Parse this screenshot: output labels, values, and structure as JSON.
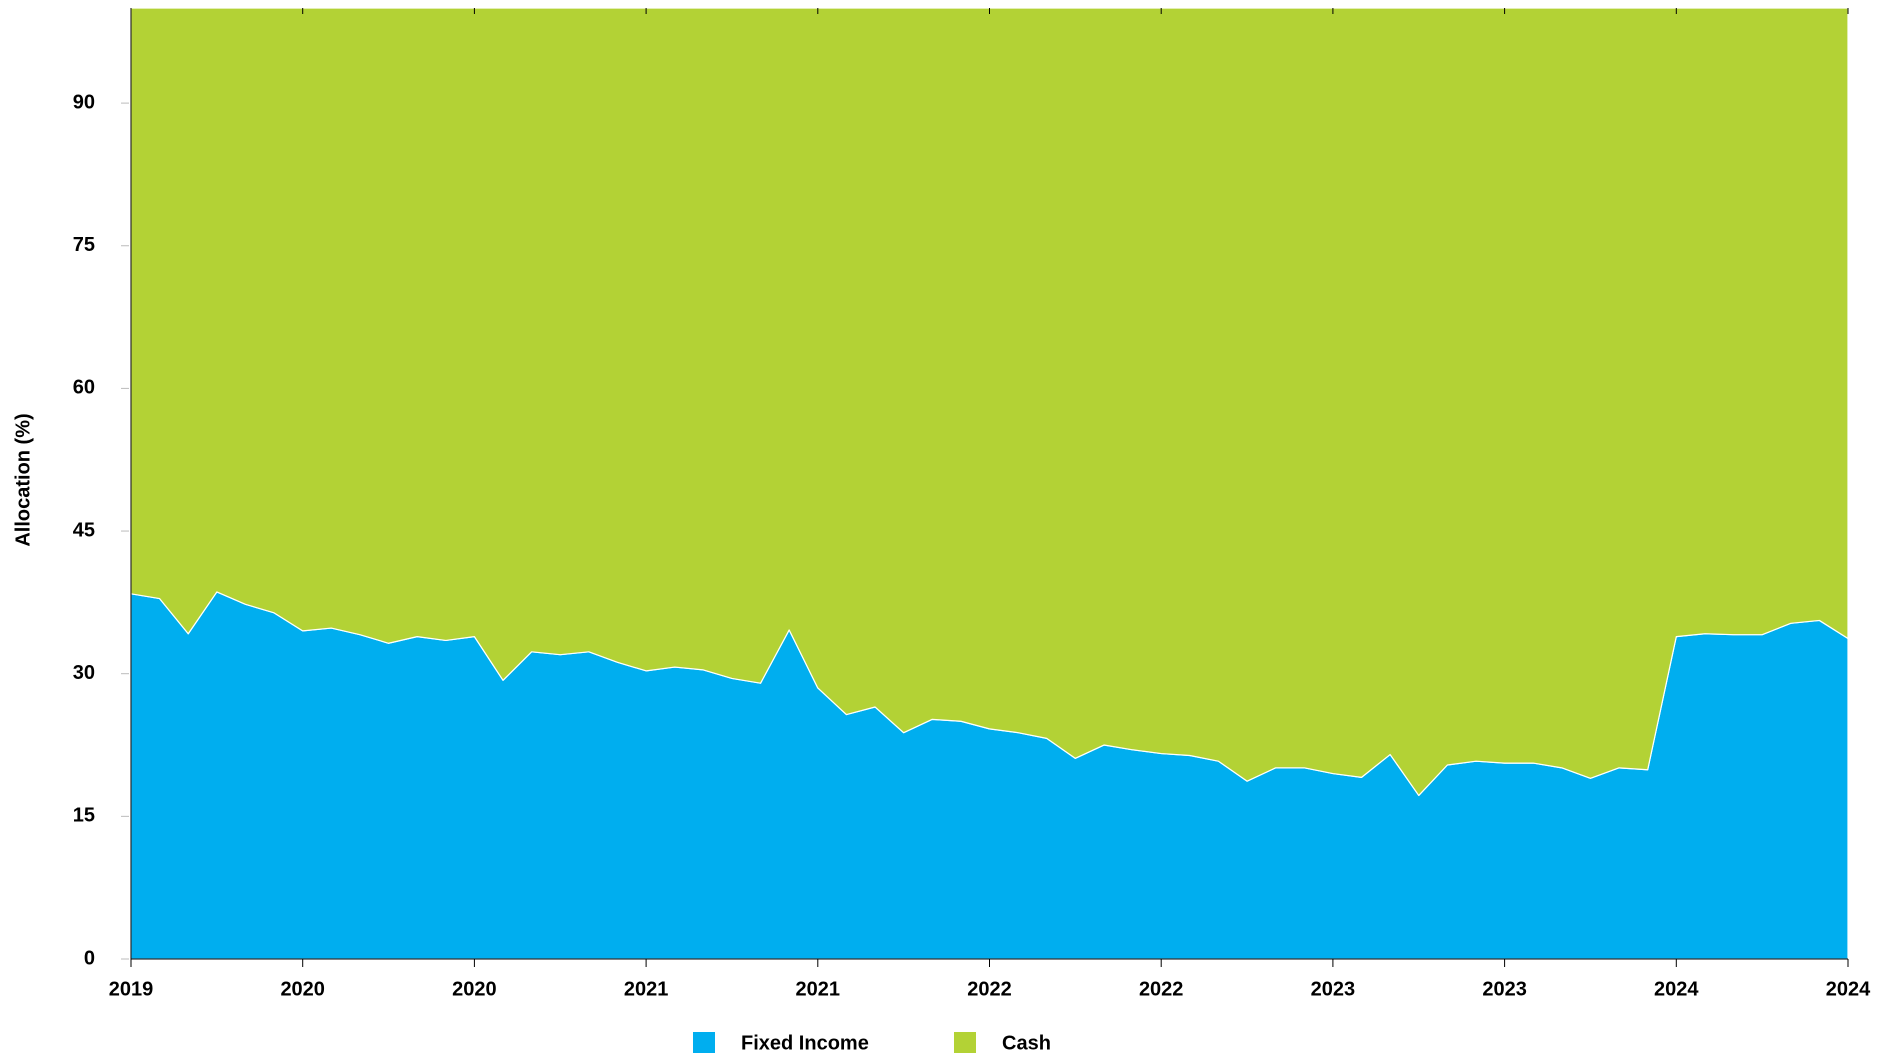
{
  "chart_data": {
    "type": "stacked-area",
    "ylabel": "Allocation (%)",
    "categories": [
      "2019",
      null,
      null,
      null,
      null,
      null,
      "2020",
      null,
      null,
      null,
      null,
      null,
      "2020",
      null,
      null,
      null,
      null,
      null,
      "2021",
      null,
      null,
      null,
      null,
      null,
      "2021",
      null,
      null,
      null,
      null,
      null,
      "2022",
      null,
      null,
      null,
      null,
      null,
      "2022",
      null,
      null,
      null,
      null,
      null,
      "2023",
      null,
      null,
      null,
      null,
      null,
      "2023",
      null,
      null,
      null,
      null,
      null,
      "2024",
      null,
      null,
      null,
      null,
      null,
      "2024"
    ],
    "series": [
      {
        "name": "Fixed Income",
        "color": "#00aeef",
        "values": [
          38.4,
          37.9,
          34.2,
          38.6,
          37.3,
          36.4,
          34.5,
          34.8,
          34.1,
          33.2,
          33.9,
          33.5,
          33.9,
          29.3,
          32.3,
          32.0,
          32.3,
          31.2,
          30.3,
          30.7,
          30.4,
          29.5,
          29.0,
          34.6,
          28.5,
          25.7,
          26.5,
          23.8,
          25.2,
          25.0,
          24.2,
          23.8,
          23.2,
          21.1,
          22.5,
          22.0,
          21.6,
          21.4,
          20.8,
          18.7,
          20.1,
          20.1,
          19.5,
          19.1,
          21.5,
          17.2,
          20.4,
          20.8,
          20.6,
          20.6,
          20.1,
          19.0,
          20.1,
          19.9,
          33.9,
          34.2,
          34.1,
          34.1,
          35.3,
          35.6,
          33.7
        ]
      },
      {
        "name": "Cash",
        "color": "#b3d235",
        "values": [
          61.6,
          62.1,
          65.8,
          61.4,
          62.7,
          63.6,
          65.5,
          65.2,
          65.9,
          66.8,
          66.1,
          66.5,
          66.1,
          70.7,
          67.7,
          68.0,
          67.7,
          68.8,
          69.7,
          69.3,
          69.6,
          70.5,
          71.0,
          65.4,
          71.5,
          74.3,
          73.5,
          76.2,
          74.8,
          75.0,
          75.8,
          76.2,
          76.8,
          78.9,
          77.5,
          78.0,
          78.4,
          78.6,
          79.2,
          81.3,
          79.9,
          79.9,
          80.5,
          80.9,
          78.5,
          82.8,
          79.6,
          79.2,
          79.4,
          79.4,
          79.9,
          81.0,
          79.9,
          80.1,
          66.1,
          65.8,
          65.9,
          65.9,
          64.7,
          64.4,
          66.3
        ]
      }
    ],
    "ylim": [
      0,
      100
    ],
    "yticks": [
      0,
      15,
      30,
      45,
      60,
      75,
      90
    ],
    "legend": "bottom"
  }
}
